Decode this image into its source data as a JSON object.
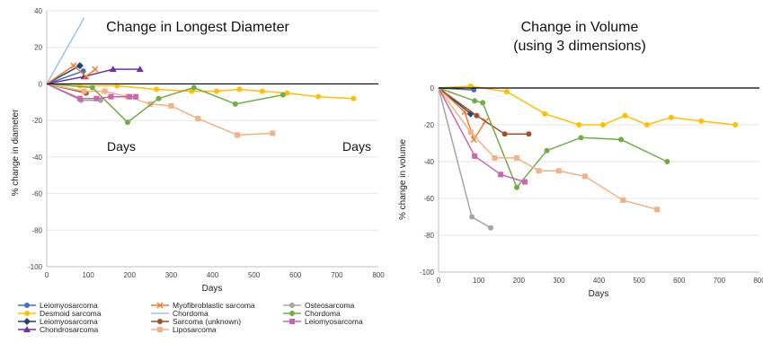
{
  "chart_data": [
    {
      "type": "line",
      "title": "Change in Longest Diameter",
      "xlabel": "Days",
      "ylabel": "% change in diameter",
      "xlim": [
        0,
        800
      ],
      "ylim": [
        -100,
        40
      ],
      "xticks": [
        0,
        100,
        200,
        300,
        400,
        500,
        600,
        700,
        800
      ],
      "yticks": [
        40,
        20,
        0,
        -20,
        -40,
        -60,
        -80,
        -100
      ],
      "annotations": [
        "Days",
        "Days"
      ],
      "series": [
        {
          "name": "Leiomyosarcoma",
          "color": "#4472C4",
          "marker": "circle",
          "points": [
            [
              0,
              0
            ],
            [
              88,
              7
            ]
          ]
        },
        {
          "name": "Desmoid sarcoma",
          "color": "#FFC000",
          "marker": "circle",
          "points": [
            [
              0,
              0
            ],
            [
              80,
              -1
            ],
            [
              170,
              -1
            ],
            [
              265,
              -3
            ],
            [
              350,
              -4
            ],
            [
              410,
              -4
            ],
            [
              465,
              -3
            ],
            [
              520,
              -4
            ],
            [
              580,
              -5
            ],
            [
              655,
              -7
            ],
            [
              740,
              -8
            ]
          ]
        },
        {
          "name": "Leiomyosarcoma",
          "color": "#264478",
          "marker": "diamond",
          "points": [
            [
              0,
              0
            ],
            [
              80,
              10
            ]
          ]
        },
        {
          "name": "Chondrosarcoma",
          "color": "#7030A0",
          "marker": "triangle",
          "points": [
            [
              0,
              0
            ],
            [
              90,
              4
            ],
            [
              160,
              8
            ],
            [
              225,
              8
            ]
          ]
        },
        {
          "name": "Myofibroblastic sarcoma",
          "color": "#ED7D31",
          "marker": "x",
          "points": [
            [
              0,
              0
            ],
            [
              65,
              10
            ],
            [
              95,
              4
            ],
            [
              117,
              8
            ]
          ]
        },
        {
          "name": "Chordoma",
          "color": "#9DC3E6",
          "marker": "none",
          "points": [
            [
              0,
              0
            ],
            [
              90,
              36
            ]
          ]
        },
        {
          "name": "Sarcoma (unknown)",
          "color": "#A0522D",
          "marker": "circle",
          "points": [
            [
              0,
              0
            ],
            [
              95,
              -5
            ]
          ]
        },
        {
          "name": "Liposarcoma",
          "color": "#F4B183",
          "marker": "square",
          "points": [
            [
              0,
              0
            ],
            [
              90,
              -4
            ],
            [
              140,
              -4
            ],
            [
              195,
              -7
            ],
            [
              250,
              -11
            ],
            [
              300,
              -12
            ],
            [
              365,
              -19
            ],
            [
              460,
              -28
            ],
            [
              545,
              -27
            ]
          ]
        },
        {
          "name": "Osteosarcoma",
          "color": "#A5A5A5",
          "marker": "circle",
          "points": [
            [
              0,
              0
            ],
            [
              83,
              -9
            ],
            [
              130,
              -9
            ]
          ]
        },
        {
          "name": "Chordoma",
          "color": "#70AD47",
          "marker": "circle",
          "points": [
            [
              0,
              0
            ],
            [
              110,
              -2
            ],
            [
              195,
              -21
            ],
            [
              270,
              -8
            ],
            [
              355,
              -2
            ],
            [
              455,
              -11
            ],
            [
              570,
              -6
            ]
          ]
        },
        {
          "name": "Leiomyosarcoma",
          "color": "#CC66AA",
          "marker": "square",
          "points": [
            [
              0,
              0
            ],
            [
              80,
              -8
            ],
            [
              120,
              -8
            ],
            [
              155,
              -7
            ],
            [
              200,
              -7
            ],
            [
              215,
              -7
            ]
          ]
        }
      ]
    },
    {
      "type": "line",
      "title": "Change in Volume",
      "subtitle": "(using 3 dimensions)",
      "xlabel": "Days",
      "ylabel": "% change in volume",
      "xlim": [
        0,
        800
      ],
      "ylim": [
        -100,
        0
      ],
      "xticks": [
        0,
        100,
        200,
        300,
        400,
        500,
        600,
        700,
        800
      ],
      "yticks": [
        0,
        -20,
        -40,
        -60,
        -80,
        -100
      ],
      "series": [
        {
          "name": "Desmoid sarcoma",
          "color": "#FFC000",
          "marker": "circle",
          "points": [
            [
              0,
              0
            ],
            [
              80,
              1
            ],
            [
              170,
              -2
            ],
            [
              265,
              -14
            ],
            [
              350,
              -20
            ],
            [
              410,
              -20
            ],
            [
              465,
              -15
            ],
            [
              520,
              -20
            ],
            [
              580,
              -16
            ],
            [
              655,
              -18
            ],
            [
              740,
              -20
            ]
          ]
        },
        {
          "name": "Leiomyosarcoma",
          "color": "#4472C4",
          "marker": "circle",
          "points": [
            [
              0,
              0
            ],
            [
              88,
              -1
            ]
          ]
        },
        {
          "name": "Leiomyosarcoma",
          "color": "#264478",
          "marker": "diamond",
          "points": [
            [
              0,
              0
            ],
            [
              80,
              -14
            ]
          ]
        },
        {
          "name": "Myofibroblastic sarcoma",
          "color": "#ED7D31",
          "marker": "x",
          "points": [
            [
              0,
              0
            ],
            [
              65,
              -13
            ],
            [
              88,
              -28
            ],
            [
              117,
              -18
            ]
          ]
        },
        {
          "name": "Sarcoma (unknown)",
          "color": "#A0522D",
          "marker": "circle",
          "points": [
            [
              0,
              0
            ],
            [
              95,
              -15
            ],
            [
              165,
              -25
            ],
            [
              225,
              -25
            ]
          ]
        },
        {
          "name": "Chordoma",
          "color": "#70AD47",
          "marker": "circle",
          "points": [
            [
              0,
              0
            ],
            [
              90,
              -7
            ],
            [
              110,
              -8
            ],
            [
              195,
              -54
            ],
            [
              270,
              -34
            ],
            [
              355,
              -27
            ],
            [
              455,
              -28
            ],
            [
              570,
              -40
            ]
          ]
        },
        {
          "name": "Liposarcoma",
          "color": "#F4B183",
          "marker": "square",
          "points": [
            [
              0,
              0
            ],
            [
              80,
              -24
            ],
            [
              140,
              -38
            ],
            [
              195,
              -38
            ],
            [
              250,
              -45
            ],
            [
              300,
              -45
            ],
            [
              365,
              -48
            ],
            [
              460,
              -61
            ],
            [
              545,
              -66
            ]
          ]
        },
        {
          "name": "Leiomyosarcoma",
          "color": "#CC66AA",
          "marker": "square",
          "points": [
            [
              0,
              0
            ],
            [
              90,
              -37
            ],
            [
              155,
              -47
            ],
            [
              215,
              -51
            ]
          ]
        },
        {
          "name": "Osteosarcoma",
          "color": "#A5A5A5",
          "marker": "circle",
          "points": [
            [
              0,
              0
            ],
            [
              83,
              -70
            ],
            [
              130,
              -76
            ]
          ]
        }
      ]
    }
  ],
  "legend": [
    [
      "Leiomyosarcoma",
      "Myofibroblastic sarcoma",
      "Osteosarcoma"
    ],
    [
      "Desmoid sarcoma",
      "Chordoma",
      "Chordoma"
    ],
    [
      "Leiomyosarcoma",
      "Sarcoma (unknown)",
      "Leiomyosarcoma"
    ],
    [
      "Chondrosarcoma",
      "Liposarcoma",
      ""
    ]
  ],
  "legend_styles": [
    [
      {
        "color": "#4472C4",
        "marker": "circle"
      },
      {
        "color": "#ED7D31",
        "marker": "x"
      },
      {
        "color": "#A5A5A5",
        "marker": "circle"
      }
    ],
    [
      {
        "color": "#FFC000",
        "marker": "circle"
      },
      {
        "color": "#9DC3E6",
        "marker": "none"
      },
      {
        "color": "#70AD47",
        "marker": "circle"
      }
    ],
    [
      {
        "color": "#264478",
        "marker": "diamond"
      },
      {
        "color": "#A0522D",
        "marker": "circle"
      },
      {
        "color": "#CC66AA",
        "marker": "square"
      }
    ],
    [
      {
        "color": "#7030A0",
        "marker": "triangle"
      },
      {
        "color": "#F4B183",
        "marker": "square"
      },
      null
    ]
  ]
}
